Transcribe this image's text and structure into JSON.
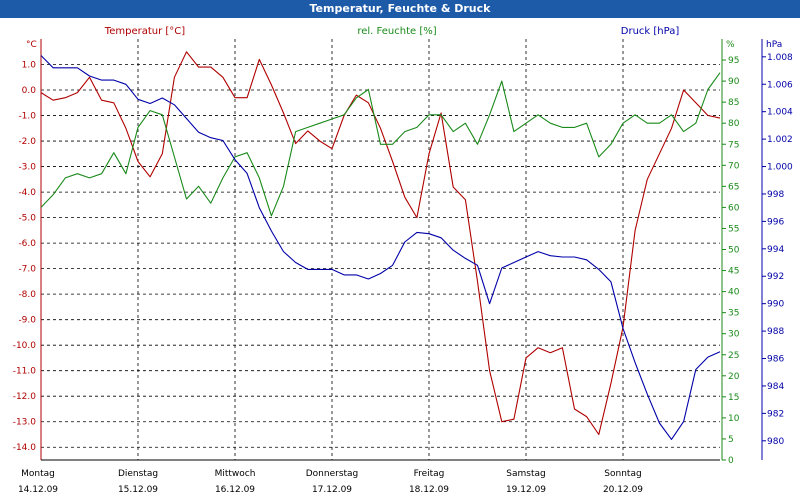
{
  "window": {
    "title": "Temperatur, Feuchte & Druck"
  },
  "colors": {
    "temperature": "#b00000",
    "humidity": "#1a8a1a",
    "pressure": "#0000a8",
    "grid": "#000000",
    "titlebar": "#1d5aa8"
  },
  "chart_data": {
    "type": "line",
    "title": "Temperatur, Feuchte & Druck",
    "grid": true,
    "x_ticks": [
      {
        "day": "Montag",
        "date": "14.12.09"
      },
      {
        "day": "Dienstag",
        "date": "15.12.09"
      },
      {
        "day": "Mittwoch",
        "date": "16.12.09"
      },
      {
        "day": "Donnerstag",
        "date": "17.12.09"
      },
      {
        "day": "Freitag",
        "date": "18.12.09"
      },
      {
        "day": "Samstag",
        "date": "19.12.09"
      },
      {
        "day": "Sonntag",
        "date": "20.12.09"
      }
    ],
    "axes": {
      "temperature": {
        "label": "Temperatur [°C]",
        "unit": "°C",
        "ylim": [
          -14.5,
          2.0
        ],
        "ticks": [
          "1.0",
          "0.0",
          "-1.0",
          "-2.0",
          "-3.0",
          "-4.0",
          "-5.0",
          "-6.0",
          "-7.0",
          "-8.0",
          "-9.0",
          "-10.0",
          "-11.0",
          "-12.0",
          "-13.0",
          "-14.0"
        ]
      },
      "humidity": {
        "label": "rel. Feuchte [%]",
        "unit": "%",
        "ylim": [
          0,
          100
        ],
        "ticks": [
          "0",
          "5",
          "10",
          "15",
          "20",
          "25",
          "30",
          "35",
          "40",
          "45",
          "50",
          "55",
          "60",
          "65",
          "70",
          "75",
          "80",
          "85",
          "90",
          "95"
        ]
      },
      "pressure": {
        "label": "Druck [hPa]",
        "unit": "hPa",
        "ylim": [
          978.6,
          1009.3
        ],
        "ticks": [
          "980",
          "982",
          "984",
          "986",
          "988",
          "990",
          "992",
          "994",
          "996",
          "998",
          "1.000",
          "1.002",
          "1.004",
          "1.006",
          "1.008"
        ]
      }
    },
    "x": [
      0,
      0.125,
      0.25,
      0.375,
      0.5,
      0.625,
      0.75,
      0.875,
      1,
      1.125,
      1.25,
      1.375,
      1.5,
      1.625,
      1.75,
      1.875,
      2,
      2.125,
      2.25,
      2.375,
      2.5,
      2.625,
      2.75,
      2.875,
      3,
      3.125,
      3.25,
      3.375,
      3.5,
      3.625,
      3.75,
      3.875,
      4,
      4.125,
      4.25,
      4.375,
      4.5,
      4.625,
      4.75,
      4.875,
      5,
      5.125,
      5.25,
      5.375,
      5.5,
      5.625,
      5.75,
      5.875,
      6,
      6.125,
      6.25,
      6.375,
      6.5,
      6.625,
      6.75,
      6.875,
      7
    ],
    "series": [
      {
        "name": "Temperatur [°C]",
        "axis": "temperature",
        "values": [
          -0.1,
          -0.4,
          -0.3,
          -0.1,
          0.5,
          -0.4,
          -0.5,
          -1.5,
          -2.8,
          -3.4,
          -2.5,
          0.5,
          1.5,
          0.9,
          0.9,
          0.5,
          -0.3,
          -0.3,
          1.2,
          0.2,
          -0.9,
          -2.1,
          -1.6,
          -2.0,
          -2.3,
          -1.0,
          -0.2,
          -0.5,
          -1.5,
          -2.8,
          -4.2,
          -5.0,
          -2.5,
          -0.9,
          -3.8,
          -4.3,
          -7.5,
          -11.0,
          -13.0,
          -12.9,
          -10.5,
          -10.1,
          -10.3,
          -10.1,
          -12.5,
          -12.8,
          -13.5,
          -11.5,
          -9.3,
          -5.5,
          -3.5,
          -2.5,
          -1.5,
          0.0,
          -0.5,
          -1.0,
          -1.1
        ]
      },
      {
        "name": "rel. Feuchte [%]",
        "axis": "humidity",
        "values": [
          60,
          63,
          67,
          68,
          67,
          68,
          73,
          68,
          79,
          83,
          82,
          72,
          62,
          65,
          61,
          67,
          72,
          73,
          67,
          58,
          65,
          78,
          79,
          80,
          81,
          82,
          86,
          88,
          75,
          75,
          78,
          79,
          82,
          82,
          78,
          80,
          75,
          82,
          90,
          78,
          80,
          82,
          80,
          79,
          79,
          80,
          72,
          75,
          80,
          82,
          80,
          80,
          82,
          78,
          80,
          88,
          92
        ]
      },
      {
        "name": "Druck [hPa]",
        "axis": "pressure",
        "values": [
          1008.1,
          1007.2,
          1007.2,
          1007.2,
          1006.6,
          1006.3,
          1006.3,
          1006.0,
          1004.9,
          1004.6,
          1005.0,
          1004.5,
          1003.5,
          1002.5,
          1002.1,
          1001.9,
          1000.5,
          999.5,
          997.0,
          995.3,
          993.8,
          993.0,
          992.5,
          992.5,
          992.5,
          992.1,
          992.1,
          991.8,
          992.2,
          992.8,
          994.5,
          995.2,
          995.1,
          994.8,
          993.9,
          993.3,
          992.8,
          990.0,
          992.6,
          993.0,
          993.4,
          993.8,
          993.5,
          993.4,
          993.4,
          993.2,
          992.5,
          991.6,
          988.2,
          985.7,
          983.4,
          981.3,
          980.1,
          981.4,
          985.2,
          986.1,
          986.5
        ]
      }
    ]
  }
}
